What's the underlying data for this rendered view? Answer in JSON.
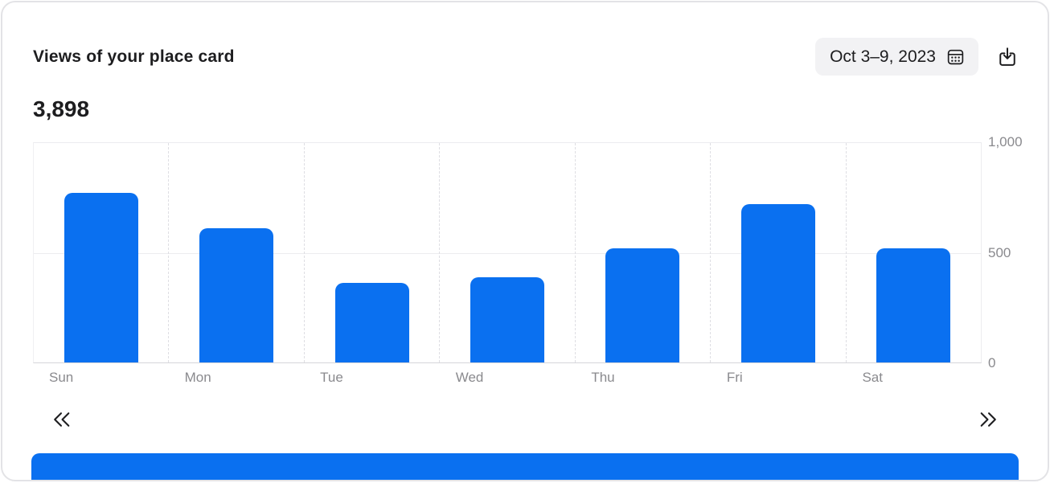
{
  "header": {
    "title": "Views of your place card",
    "date_range": "Oct 3–9, 2023",
    "calendar_icon": "calendar-icon",
    "download_icon": "square-and-arrow-down-icon"
  },
  "total": "3,898",
  "chart_data": {
    "type": "bar",
    "title": "Views of your place card",
    "categories": [
      "Sun",
      "Mon",
      "Tue",
      "Wed",
      "Thu",
      "Fri",
      "Sat"
    ],
    "values": [
      772,
      612,
      362,
      388,
      522,
      720,
      522
    ],
    "total": 3898,
    "xlabel": "",
    "ylabel": "",
    "ylim": [
      0,
      1000
    ],
    "yticks": [
      0,
      500,
      1000
    ],
    "ytick_labels": [
      "0",
      "500",
      "1,000"
    ],
    "y_axis_position": "right",
    "grid": "horizontal solid at 0/500/1000, vertical dashed column separators",
    "legend": "none",
    "bar_color": "#0a70f0"
  },
  "pagination": {
    "prev_icon": "chevron-double-left",
    "next_icon": "chevron-double-right"
  },
  "colors": {
    "accent_blue": "#0a70f0",
    "text_primary": "#1d1d1f",
    "axis_text": "#8a8a8e",
    "gridline": "#ececef",
    "button_bg": "#f2f2f4",
    "card_border": "#e3e3e6"
  }
}
